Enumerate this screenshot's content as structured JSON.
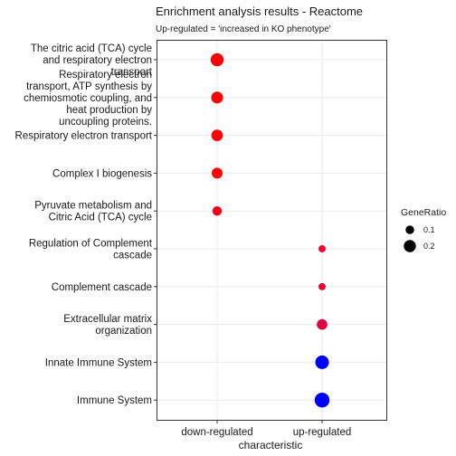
{
  "chart_data": {
    "type": "scatter",
    "title": "Enrichment analysis results - Reactome",
    "subtitle": "Up-regulated = 'increased in KO phenotype'",
    "xlabel": "characteristic",
    "ylabel": "",
    "x_categories": [
      "down-regulated",
      "up-regulated"
    ],
    "y_categories": [
      "The citric acid (TCA) cycle and respiratory electron transport",
      "Respiratory electron transport, ATP synthesis by chemiosmotic coupling, and heat production by uncoupling proteins.",
      "Respiratory electron transport",
      "Complex I biogenesis",
      "Pyruvate metabolism and Citric Acid (TCA) cycle",
      "Regulation of Complement cascade",
      "Complement cascade",
      "Extracellular matrix organization",
      "Innate Immune System",
      "Immune System"
    ],
    "y_category_lines": [
      [
        "The citric acid (TCA) cycle",
        "and respiratory electron",
        "transport"
      ],
      [
        "Respiratory electron",
        "transport, ATP synthesis by",
        "chemiosmotic coupling, and",
        "heat production by",
        "uncoupling proteins."
      ],
      [
        "Respiratory electron transport"
      ],
      [
        "Complex I biogenesis"
      ],
      [
        "Pyruvate metabolism and",
        "Citric Acid (TCA) cycle"
      ],
      [
        "Regulation of Complement",
        "cascade"
      ],
      [
        "Complement cascade"
      ],
      [
        "Extracellular matrix",
        "organization"
      ],
      [
        "Innate Immune System"
      ],
      [
        "Immune System"
      ]
    ],
    "points": [
      {
        "term": "The citric acid (TCA) cycle and respiratory electron transport",
        "x": "down-regulated",
        "gene_ratio": 0.23,
        "color": "#ff0000"
      },
      {
        "term": "Respiratory electron transport, ATP synthesis by chemiosmotic coupling, and heat production by uncoupling proteins.",
        "x": "down-regulated",
        "gene_ratio": 0.19,
        "color": "#ff0000"
      },
      {
        "term": "Respiratory electron transport",
        "x": "down-regulated",
        "gene_ratio": 0.18,
        "color": "#ff0000"
      },
      {
        "term": "Complex I biogenesis",
        "x": "down-regulated",
        "gene_ratio": 0.16,
        "color": "#ff0000"
      },
      {
        "term": "Pyruvate metabolism and Citric Acid (TCA) cycle",
        "x": "down-regulated",
        "gene_ratio": 0.12,
        "color": "#f5001a"
      },
      {
        "term": "Regulation of Complement cascade",
        "x": "up-regulated",
        "gene_ratio": 0.07,
        "color": "#f0002a"
      },
      {
        "term": "Complement cascade",
        "x": "up-regulated",
        "gene_ratio": 0.07,
        "color": "#f0002a"
      },
      {
        "term": "Extracellular matrix organization",
        "x": "up-regulated",
        "gene_ratio": 0.15,
        "color": "#e0003f"
      },
      {
        "term": "Innate Immune System",
        "x": "up-regulated",
        "gene_ratio": 0.25,
        "color": "#0000ff"
      },
      {
        "term": "Immune System",
        "x": "up-regulated",
        "gene_ratio": 0.3,
        "color": "#0000ff"
      }
    ],
    "size_scale_range": [
      0,
      0.3
    ],
    "legend": {
      "title": "GeneRatio",
      "position": "right",
      "entries": [
        {
          "label": "0.1",
          "value": 0.1
        },
        {
          "label": "0.2",
          "value": 0.2
        }
      ]
    },
    "grid": true
  }
}
